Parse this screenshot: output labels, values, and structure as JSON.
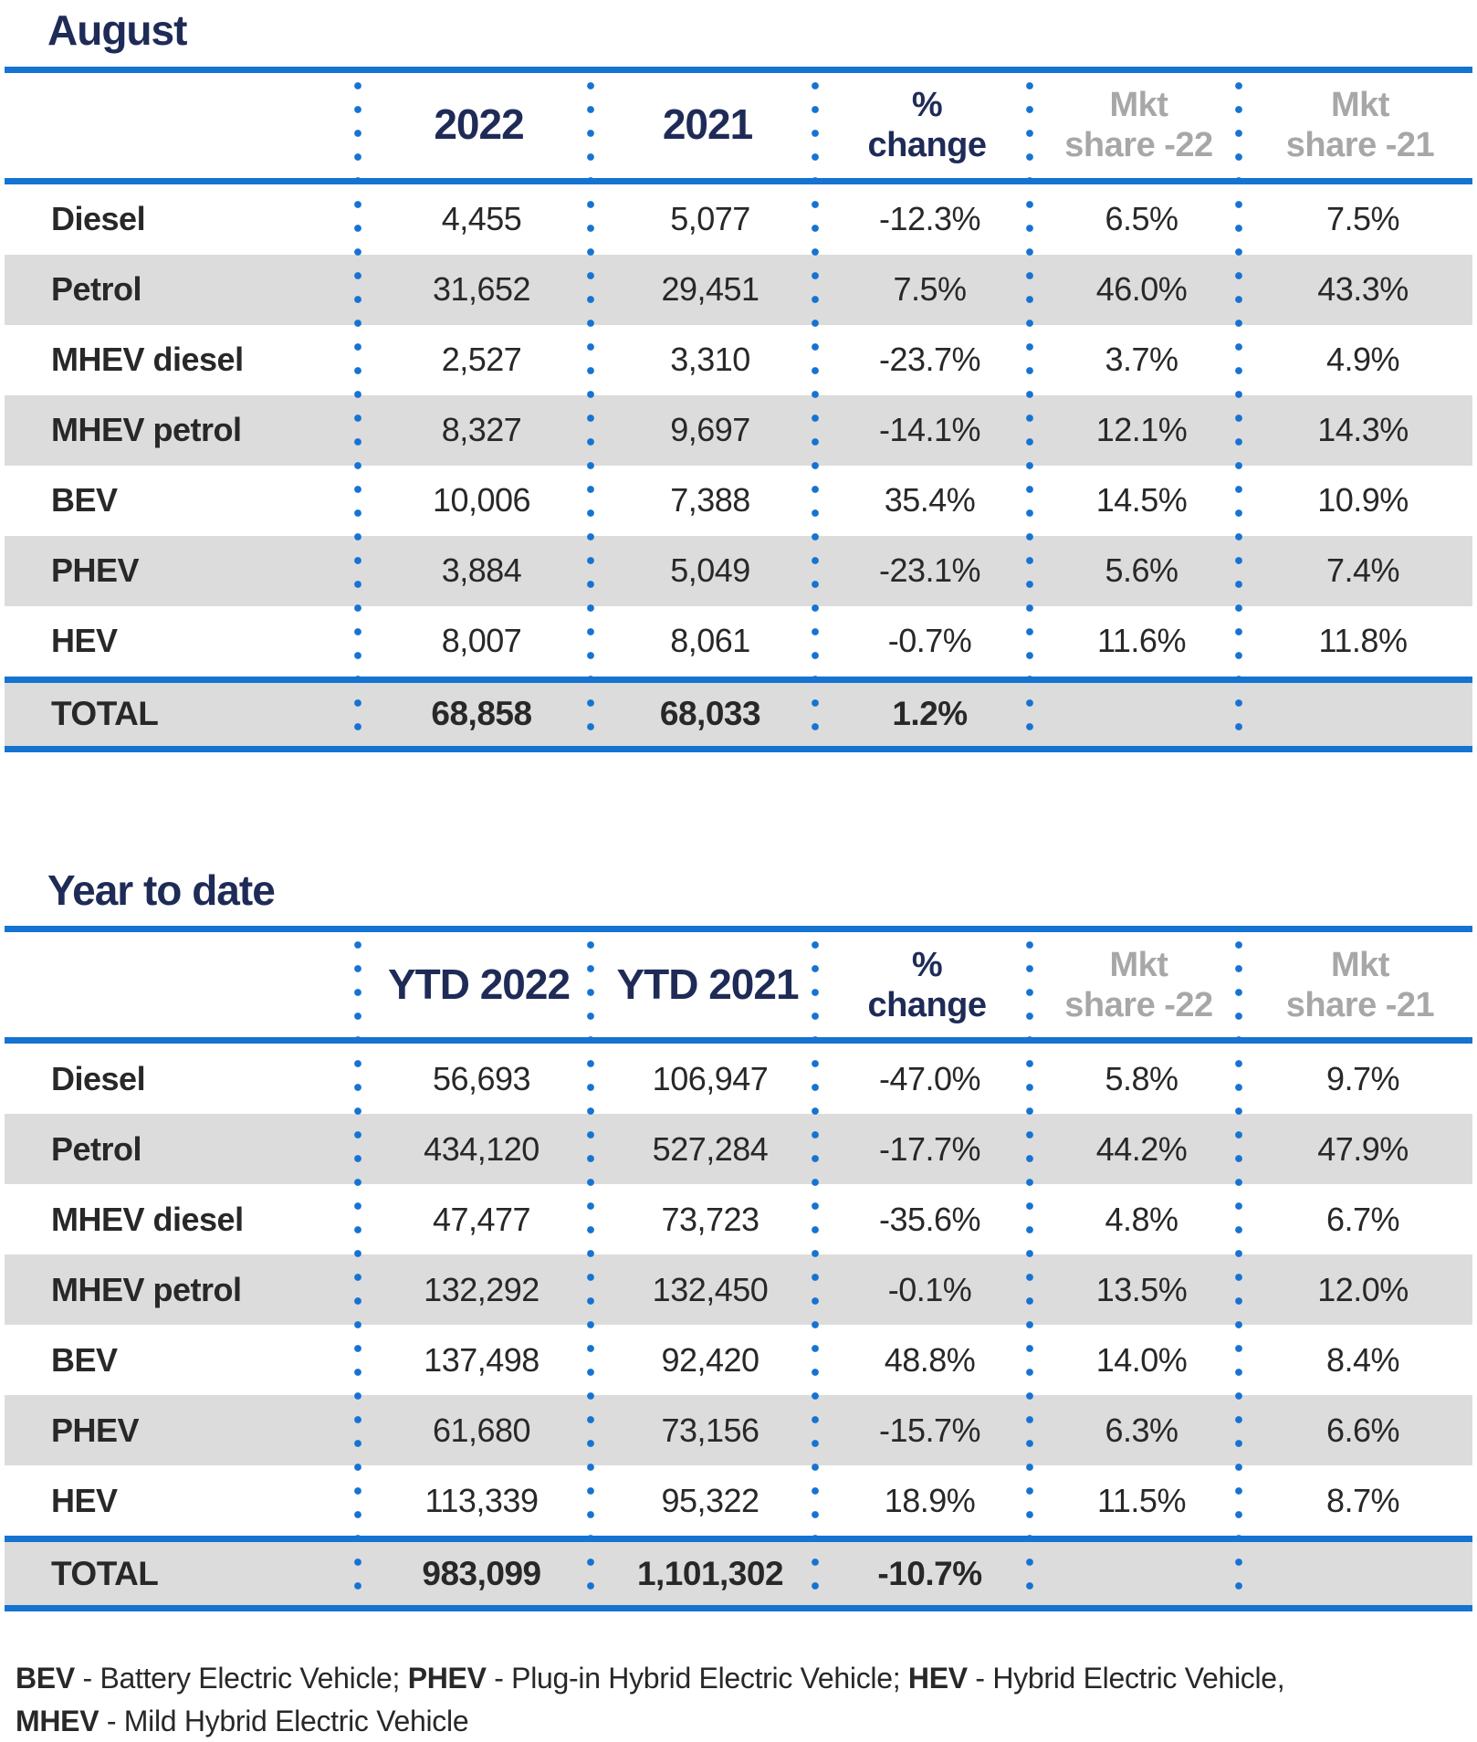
{
  "tables": [
    {
      "title": "August",
      "header": {
        "col_year_a": "2022",
        "col_year_b": "2021",
        "col_change_line1": "%",
        "col_change_line2": "change",
        "col_share22_line1": "Mkt",
        "col_share22_line2": "share -22",
        "col_share21_line1": "Mkt",
        "col_share21_line2": "share -21"
      },
      "rows": [
        {
          "label": "Diesel",
          "year_a": "4,455",
          "year_b": "5,077",
          "change": "-12.3%",
          "share22": "6.5%",
          "share21": "7.5%"
        },
        {
          "label": "Petrol",
          "year_a": "31,652",
          "year_b": "29,451",
          "change": "7.5%",
          "share22": "46.0%",
          "share21": "43.3%"
        },
        {
          "label": "MHEV diesel",
          "year_a": "2,527",
          "year_b": "3,310",
          "change": "-23.7%",
          "share22": "3.7%",
          "share21": "4.9%"
        },
        {
          "label": "MHEV petrol",
          "year_a": "8,327",
          "year_b": "9,697",
          "change": "-14.1%",
          "share22": "12.1%",
          "share21": "14.3%"
        },
        {
          "label": "BEV",
          "year_a": "10,006",
          "year_b": "7,388",
          "change": "35.4%",
          "share22": "14.5%",
          "share21": "10.9%"
        },
        {
          "label": "PHEV",
          "year_a": "3,884",
          "year_b": "5,049",
          "change": "-23.1%",
          "share22": "5.6%",
          "share21": "7.4%"
        },
        {
          "label": "HEV",
          "year_a": "8,007",
          "year_b": "8,061",
          "change": "-0.7%",
          "share22": "11.6%",
          "share21": "11.8%"
        }
      ],
      "total": {
        "label": "TOTAL",
        "year_a": "68,858",
        "year_b": "68,033",
        "change": "1.2%",
        "share22": "",
        "share21": ""
      }
    },
    {
      "title": "Year to date",
      "header": {
        "col_year_a": "YTD 2022",
        "col_year_b": "YTD 2021",
        "col_change_line1": "%",
        "col_change_line2": "change",
        "col_share22_line1": "Mkt",
        "col_share22_line2": "share -22",
        "col_share21_line1": "Mkt",
        "col_share21_line2": "share -21"
      },
      "rows": [
        {
          "label": "Diesel",
          "year_a": "56,693",
          "year_b": "106,947",
          "change": "-47.0%",
          "share22": "5.8%",
          "share21": "9.7%"
        },
        {
          "label": "Petrol",
          "year_a": "434,120",
          "year_b": "527,284",
          "change": "-17.7%",
          "share22": "44.2%",
          "share21": "47.9%"
        },
        {
          "label": "MHEV diesel",
          "year_a": "47,477",
          "year_b": "73,723",
          "change": "-35.6%",
          "share22": "4.8%",
          "share21": "6.7%"
        },
        {
          "label": "MHEV petrol",
          "year_a": "132,292",
          "year_b": "132,450",
          "change": "-0.1%",
          "share22": "13.5%",
          "share21": "12.0%"
        },
        {
          "label": "BEV",
          "year_a": "137,498",
          "year_b": "92,420",
          "change": "48.8%",
          "share22": "14.0%",
          "share21": "8.4%"
        },
        {
          "label": "PHEV",
          "year_a": "61,680",
          "year_b": "73,156",
          "change": "-15.7%",
          "share22": "6.3%",
          "share21": "6.6%"
        },
        {
          "label": "HEV",
          "year_a": "113,339",
          "year_b": "95,322",
          "change": "18.9%",
          "share22": "11.5%",
          "share21": "8.7%"
        }
      ],
      "total": {
        "label": "TOTAL",
        "year_a": "983,099",
        "year_b": "1,101,302",
        "change": "-10.7%",
        "share22": "",
        "share21": ""
      }
    }
  ],
  "footnote": {
    "segments": [
      {
        "text": "BEV",
        "bold": true
      },
      {
        "text": " - Battery Electric Vehicle; ",
        "bold": false
      },
      {
        "text": "PHEV",
        "bold": true
      },
      {
        "text": " - Plug-in Hybrid Electric Vehicle; ",
        "bold": false
      },
      {
        "text": "HEV",
        "bold": true
      },
      {
        "text": " - Hybrid Electric Vehicle,",
        "bold": false
      },
      {
        "break": true
      },
      {
        "text": "MHEV",
        "bold": true
      },
      {
        "text": " - Mild Hybrid Electric Vehicle",
        "bold": false
      }
    ]
  },
  "colors": {
    "accent_blue": "#1573d1",
    "navy": "#1f2b57",
    "stripe_gray": "#dcdcdc",
    "header_gray": "#a7a7a8",
    "text": "#282828"
  }
}
